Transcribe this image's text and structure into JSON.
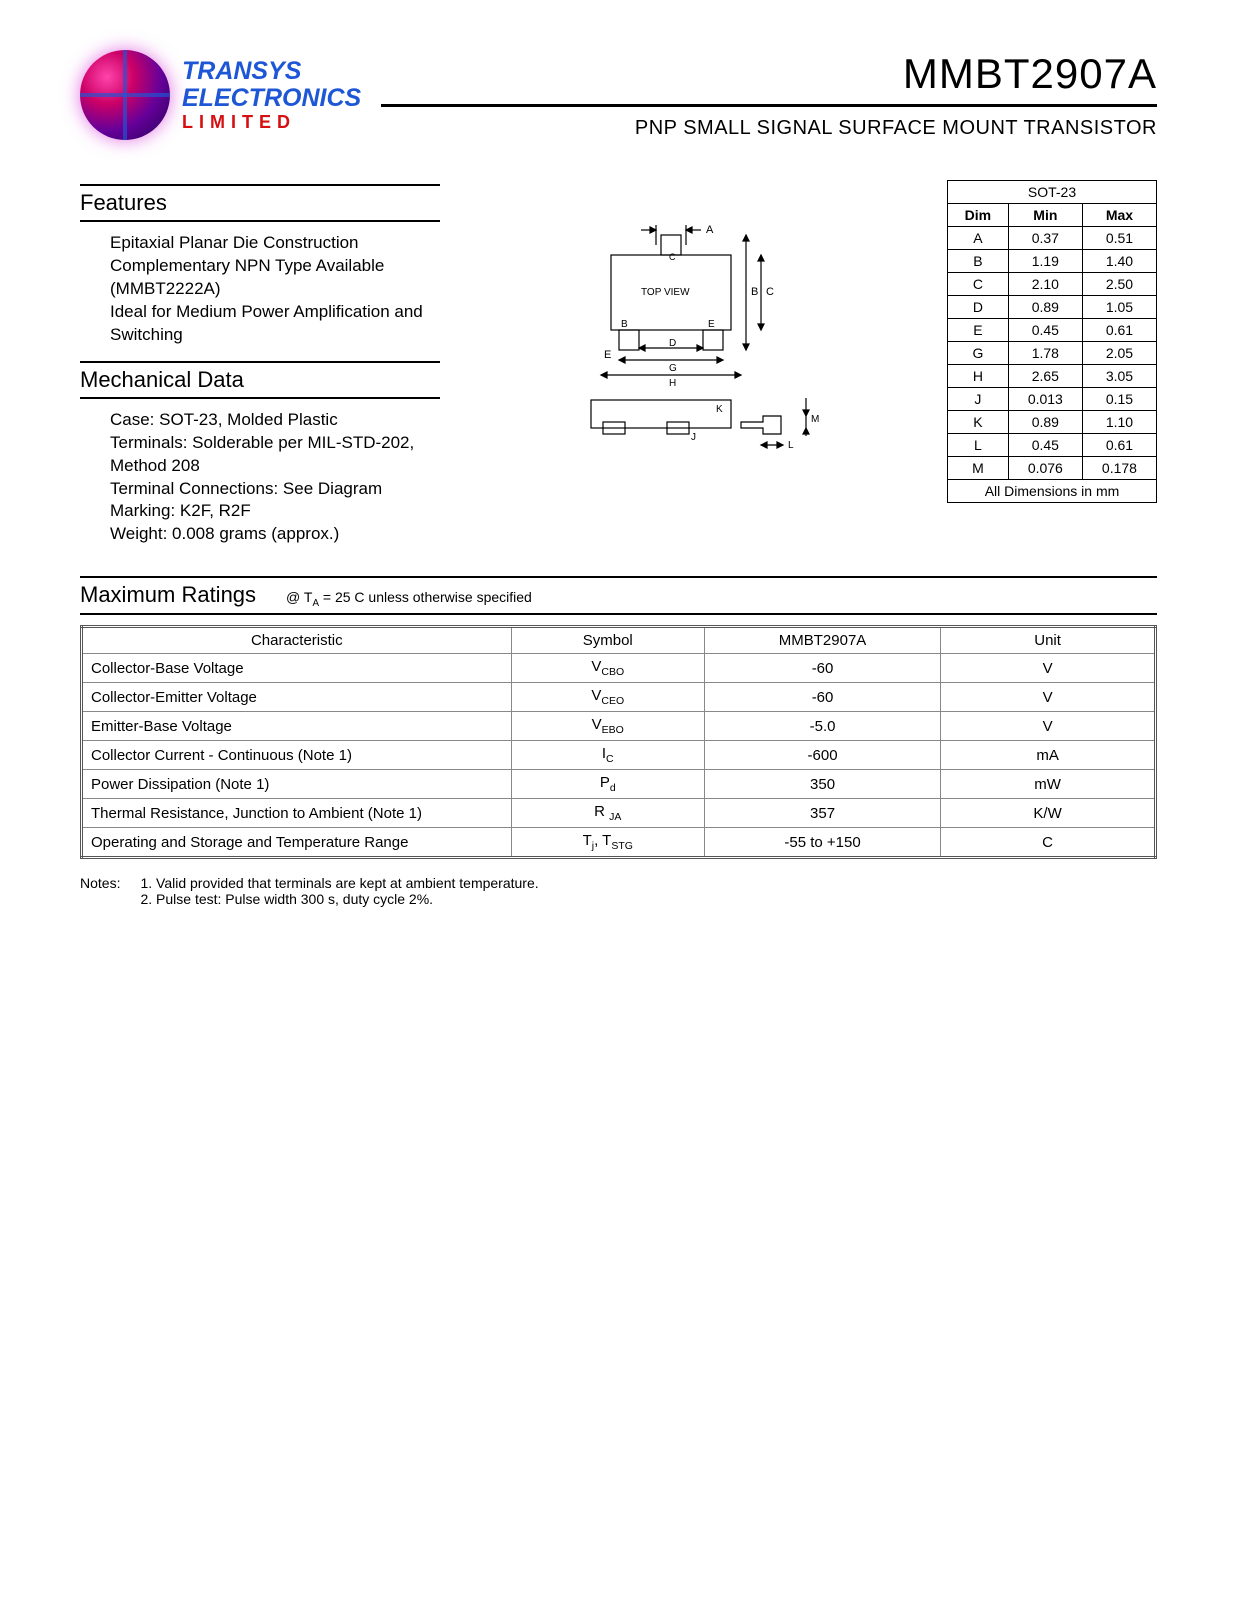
{
  "logo": {
    "line1": "TRANSYS",
    "line2": "ELECTRONICS",
    "line3": "LIMITED"
  },
  "header": {
    "part_number": "MMBT2907A",
    "subtitle": "PNP SMALL SIGNAL SURFACE MOUNT TRANSISTOR"
  },
  "features": {
    "title": "Features",
    "items": [
      "Epitaxial Planar Die Construction",
      "Complementary NPN Type Available (MMBT2222A)",
      "Ideal for Medium Power Amplification and Switching"
    ]
  },
  "mechanical": {
    "title": "Mechanical Data",
    "items": [
      "Case: SOT-23, Molded Plastic",
      "Terminals: Solderable per MIL-STD-202, Method 208",
      "Terminal Connections: See Diagram",
      "Marking: K2F, R2F",
      "Weight: 0.008 grams (approx.)"
    ]
  },
  "package_diagram": {
    "type": "mechanical-drawing",
    "label_top": "TOP VIEW",
    "dimension_labels": [
      "A",
      "B",
      "C",
      "D",
      "E",
      "G",
      "H",
      "J",
      "K",
      "L",
      "M"
    ],
    "stroke_color": "#000000",
    "background_color": "#ffffff",
    "line_width": 1.2
  },
  "dimensions_table": {
    "title": "SOT-23",
    "columns": [
      "Dim",
      "Min",
      "Max"
    ],
    "rows": [
      [
        "A",
        "0.37",
        "0.51"
      ],
      [
        "B",
        "1.19",
        "1.40"
      ],
      [
        "C",
        "2.10",
        "2.50"
      ],
      [
        "D",
        "0.89",
        "1.05"
      ],
      [
        "E",
        "0.45",
        "0.61"
      ],
      [
        "G",
        "1.78",
        "2.05"
      ],
      [
        "H",
        "2.65",
        "3.05"
      ],
      [
        "J",
        "0.013",
        "0.15"
      ],
      [
        "K",
        "0.89",
        "1.10"
      ],
      [
        "L",
        "0.45",
        "0.61"
      ],
      [
        "M",
        "0.076",
        "0.178"
      ]
    ],
    "footer": "All Dimensions in mm"
  },
  "ratings": {
    "title": "Maximum Ratings",
    "condition": "@ Tᴀ = 25 C unless otherwise specified",
    "columns": [
      "Characteristic",
      "Symbol",
      "MMBT2907A",
      "Unit"
    ],
    "rows": [
      {
        "char": "Collector-Base Voltage",
        "sym": "V",
        "sub": "CBO",
        "val": "-60",
        "unit": "V"
      },
      {
        "char": "Collector-Emitter Voltage",
        "sym": "V",
        "sub": "CEO",
        "val": "-60",
        "unit": "V"
      },
      {
        "char": "Emitter-Base Voltage",
        "sym": "V",
        "sub": "EBO",
        "val": "-5.0",
        "unit": "V"
      },
      {
        "char": "Collector Current - Continuous (Note 1)",
        "sym": "I",
        "sub": "C",
        "val": "-600",
        "unit": "mA"
      },
      {
        "char": "Power Dissipation (Note 1)",
        "sym": "P",
        "sub": "d",
        "val": "350",
        "unit": "mW"
      },
      {
        "char": "Thermal Resistance, Junction to Ambient (Note 1)",
        "sym": "R ",
        "sub": "JA",
        "val": "357",
        "unit": "K/W"
      },
      {
        "char": "Operating and Storage and Temperature Range",
        "sym": "T",
        "sub": "j, Tₛₜᵍ",
        "sym2": "Tj, TSTG",
        "val": "-55 to +150",
        "unit": "C"
      }
    ]
  },
  "notes": {
    "label": "Notes:",
    "items": [
      "1.  Valid provided that terminals are kept at ambient temperature.",
      "2.  Pulse test:  Pulse width   300  s, duty cycle   2%."
    ]
  },
  "colors": {
    "text": "#000000",
    "logo_blue": "#1e57d6",
    "logo_red": "#d61010",
    "table_border": "#888888"
  }
}
